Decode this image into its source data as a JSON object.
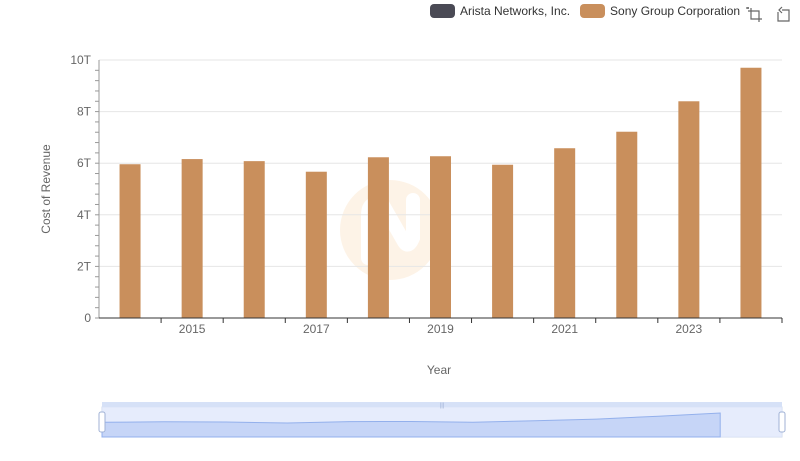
{
  "legend": {
    "items": [
      {
        "label": "Arista Networks, Inc.",
        "color": "#4a4a55"
      },
      {
        "label": "Sony Group Corporation",
        "color": "#c98f5c"
      }
    ]
  },
  "toolbox": {
    "zoom_icon": "data-zoom-icon",
    "restore_icon": "zoom-reset-icon"
  },
  "chart_data": {
    "type": "bar",
    "title": "",
    "xlabel": "Year",
    "ylabel": "Cost of Revenue",
    "ylim": [
      0,
      10
    ],
    "y_unit": "T",
    "y_ticks": [
      "0",
      "2T",
      "4T",
      "6T",
      "8T",
      "10T"
    ],
    "x_tick_labels": [
      "2015",
      "2017",
      "2019",
      "2021",
      "2023"
    ],
    "categories": [
      "2014",
      "2015",
      "2016",
      "2017",
      "2018",
      "2019",
      "2020",
      "2021",
      "2022",
      "2023",
      "2024"
    ],
    "series": [
      {
        "name": "Arista Networks, Inc.",
        "color": "#4a4a55",
        "values": [
          0.0003,
          0.0003,
          0.0005,
          0.0006,
          0.0008,
          0.0008,
          0.0009,
          0.0012,
          0.0018,
          0.0023,
          0.0025
        ]
      },
      {
        "name": "Sony Group Corporation",
        "color": "#c98f5c",
        "values": [
          5.96,
          6.16,
          6.08,
          5.67,
          6.23,
          6.27,
          5.94,
          6.58,
          7.22,
          8.4,
          9.7
        ]
      }
    ],
    "grid": true,
    "legend_position": "top-right"
  }
}
